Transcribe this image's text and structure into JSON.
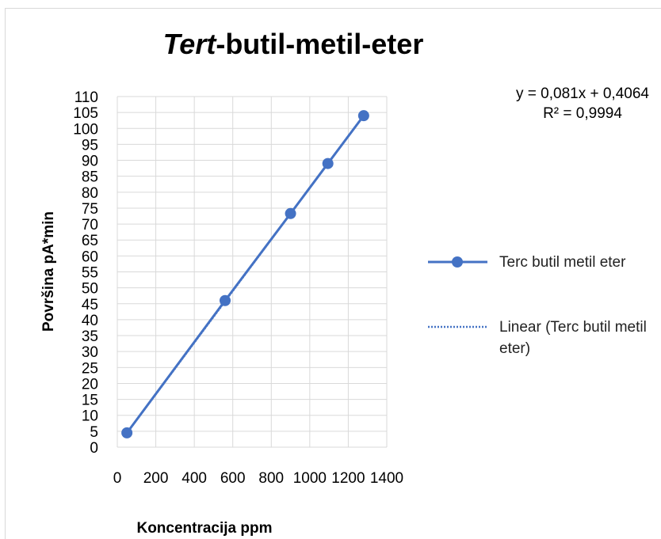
{
  "chart_data": {
    "type": "scatter",
    "title": "Tert-butil-metil-eter",
    "xlabel": "Koncentracija ppm",
    "ylabel": "Površina pA*min",
    "x": [
      50,
      560,
      900,
      1094,
      1280
    ],
    "series": [
      {
        "name": "Terc butil metil eter",
        "color": "#4472c4",
        "values": [
          4.5,
          46,
          73.3,
          89,
          104
        ]
      }
    ],
    "trendline": {
      "name": "Linear (Terc butil metil eter)",
      "slope": 0.081,
      "intercept": 0.4064,
      "equation_label": "y = 0,081x + 0,4064",
      "r2_label": "R² = 0,9994"
    },
    "xlim": [
      0,
      1400
    ],
    "xticks": [
      0,
      200,
      400,
      600,
      800,
      1000,
      1200,
      1400
    ],
    "ylim": [
      0,
      110
    ],
    "yticks": [
      0,
      5,
      10,
      15,
      20,
      25,
      30,
      35,
      40,
      45,
      50,
      55,
      60,
      65,
      70,
      75,
      80,
      85,
      90,
      95,
      100,
      105,
      110
    ],
    "grid": true
  }
}
